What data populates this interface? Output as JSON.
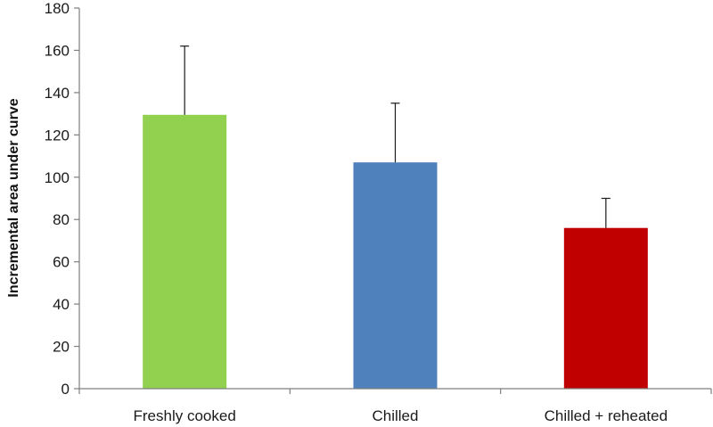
{
  "chart_data": {
    "type": "bar",
    "title": "",
    "xlabel": "",
    "ylabel": "Incremental area under curve",
    "ylim": [
      0,
      180
    ],
    "yticks": [
      0,
      20,
      40,
      60,
      80,
      100,
      120,
      140,
      160,
      180
    ],
    "categories": [
      "Freshly cooked",
      "Chilled",
      "Chilled + reheated"
    ],
    "values": [
      129.5,
      107,
      76
    ],
    "error_upper": [
      162,
      135,
      90
    ],
    "colors": [
      "#92d050",
      "#4f81bd",
      "#c00000"
    ],
    "grid": false,
    "legend": "none"
  }
}
